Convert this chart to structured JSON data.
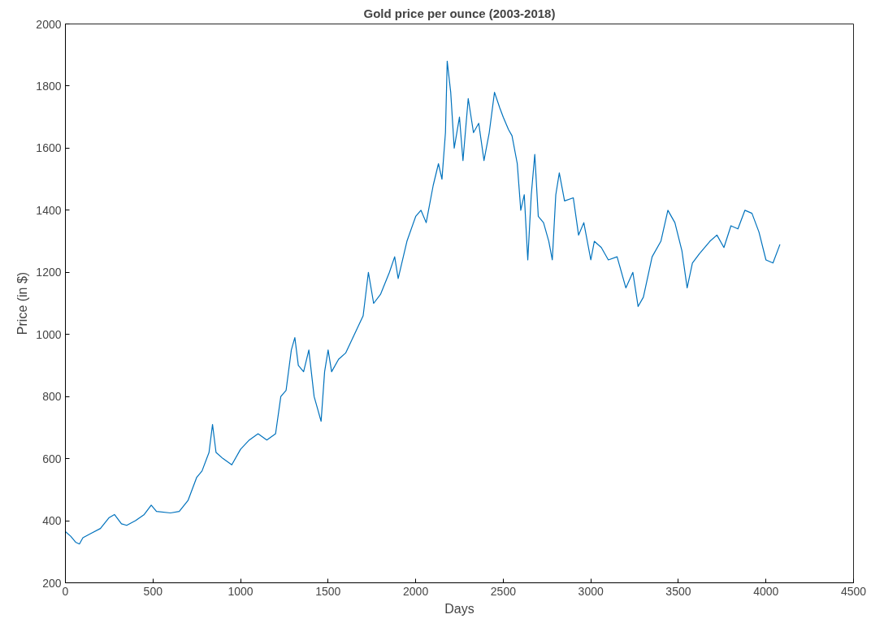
{
  "chart_data": {
    "type": "line",
    "title": "Gold price per ounce (2003-2018)",
    "xlabel": "Days",
    "ylabel": "Price (in $)",
    "xlim": [
      0,
      4500
    ],
    "xticks": [
      0,
      500,
      1000,
      1500,
      2000,
      2500,
      3000,
      3500,
      4000,
      4500
    ],
    "ylim": [
      200,
      2000
    ],
    "yticks": [
      200,
      400,
      600,
      800,
      1000,
      1200,
      1400,
      1600,
      1800,
      2000
    ],
    "grid": false,
    "series": [
      {
        "color": "#0072bd",
        "x": [
          0,
          30,
          60,
          80,
          100,
          150,
          200,
          250,
          280,
          320,
          350,
          400,
          450,
          490,
          520,
          600,
          650,
          700,
          750,
          780,
          820,
          840,
          860,
          900,
          950,
          1000,
          1050,
          1100,
          1150,
          1200,
          1230,
          1260,
          1290,
          1310,
          1330,
          1360,
          1390,
          1420,
          1440,
          1460,
          1480,
          1500,
          1520,
          1560,
          1600,
          1650,
          1700,
          1730,
          1760,
          1800,
          1850,
          1880,
          1900,
          1950,
          2000,
          2030,
          2060,
          2100,
          2130,
          2150,
          2170,
          2180,
          2200,
          2220,
          2250,
          2270,
          2300,
          2330,
          2360,
          2390,
          2420,
          2450,
          2480,
          2500,
          2530,
          2550,
          2580,
          2600,
          2620,
          2640,
          2660,
          2680,
          2700,
          2730,
          2760,
          2780,
          2800,
          2820,
          2850,
          2900,
          2930,
          2960,
          3000,
          3020,
          3060,
          3100,
          3150,
          3200,
          3240,
          3270,
          3300,
          3350,
          3400,
          3440,
          3480,
          3520,
          3550,
          3580,
          3620,
          3680,
          3720,
          3760,
          3800,
          3840,
          3880,
          3920,
          3960,
          4000,
          4040,
          4080
        ],
        "values": [
          365,
          350,
          330,
          325,
          345,
          360,
          375,
          410,
          420,
          390,
          385,
          400,
          420,
          450,
          430,
          425,
          430,
          465,
          540,
          560,
          620,
          710,
          620,
          600,
          580,
          630,
          660,
          680,
          660,
          680,
          800,
          820,
          950,
          990,
          900,
          880,
          950,
          800,
          760,
          720,
          880,
          950,
          880,
          920,
          940,
          1000,
          1060,
          1200,
          1100,
          1130,
          1200,
          1250,
          1180,
          1300,
          1380,
          1400,
          1360,
          1480,
          1550,
          1500,
          1650,
          1880,
          1780,
          1600,
          1700,
          1560,
          1760,
          1650,
          1680,
          1560,
          1650,
          1780,
          1730,
          1700,
          1660,
          1640,
          1550,
          1400,
          1450,
          1240,
          1450,
          1580,
          1380,
          1360,
          1300,
          1240,
          1450,
          1520,
          1430,
          1440,
          1320,
          1360,
          1240,
          1300,
          1280,
          1240,
          1250,
          1150,
          1200,
          1090,
          1120,
          1250,
          1300,
          1400,
          1360,
          1270,
          1150,
          1230,
          1260,
          1300,
          1320,
          1280,
          1350,
          1340,
          1400,
          1390,
          1330,
          1240,
          1230,
          1290
        ]
      }
    ]
  }
}
